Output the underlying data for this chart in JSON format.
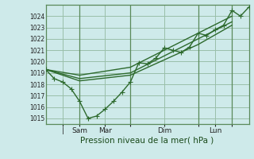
{
  "xlabel": "Pression niveau de la mer( hPa )",
  "bg_color": "#ceeaea",
  "plot_bg_color": "#ceeaea",
  "line_color": "#2d6a2d",
  "grid_color": "#9abfaa",
  "ylim": [
    1014.5,
    1025.0
  ],
  "yticks": [
    1015,
    1016,
    1017,
    1018,
    1019,
    1020,
    1021,
    1022,
    1023,
    1024
  ],
  "xlim": [
    0,
    96
  ],
  "vlines_x": [
    16,
    40,
    72,
    88
  ],
  "xtick_positions": [
    8,
    16,
    28,
    40,
    56,
    72,
    80,
    88
  ],
  "xtick_labels": [
    "|",
    "Sam",
    "Mar",
    "",
    "Dim",
    "",
    "Lun",
    ""
  ],
  "series_main_x": [
    0,
    4,
    8,
    12,
    16,
    20,
    24,
    28,
    32,
    36,
    40,
    44,
    48,
    52,
    56,
    60,
    64,
    68,
    72,
    76,
    80,
    84,
    88,
    92,
    96
  ],
  "series_main_y": [
    1019.3,
    1018.5,
    1018.2,
    1017.6,
    1016.5,
    1015.0,
    1015.2,
    1015.8,
    1016.5,
    1017.3,
    1018.2,
    1019.9,
    1019.8,
    1020.3,
    1021.2,
    1021.0,
    1020.8,
    1021.3,
    1022.5,
    1022.3,
    1022.8,
    1023.2,
    1024.5,
    1024.0,
    1024.8
  ],
  "series_trend1_x": [
    0,
    16,
    40,
    72,
    88
  ],
  "series_trend1_y": [
    1019.3,
    1018.5,
    1019.0,
    1022.0,
    1023.5
  ],
  "series_trend2_x": [
    0,
    16,
    40,
    72,
    88
  ],
  "series_trend2_y": [
    1019.3,
    1018.8,
    1019.5,
    1022.5,
    1024.0
  ],
  "series_trend3_x": [
    0,
    16,
    40,
    72,
    88
  ],
  "series_trend3_y": [
    1019.3,
    1018.3,
    1018.8,
    1021.5,
    1023.2
  ]
}
